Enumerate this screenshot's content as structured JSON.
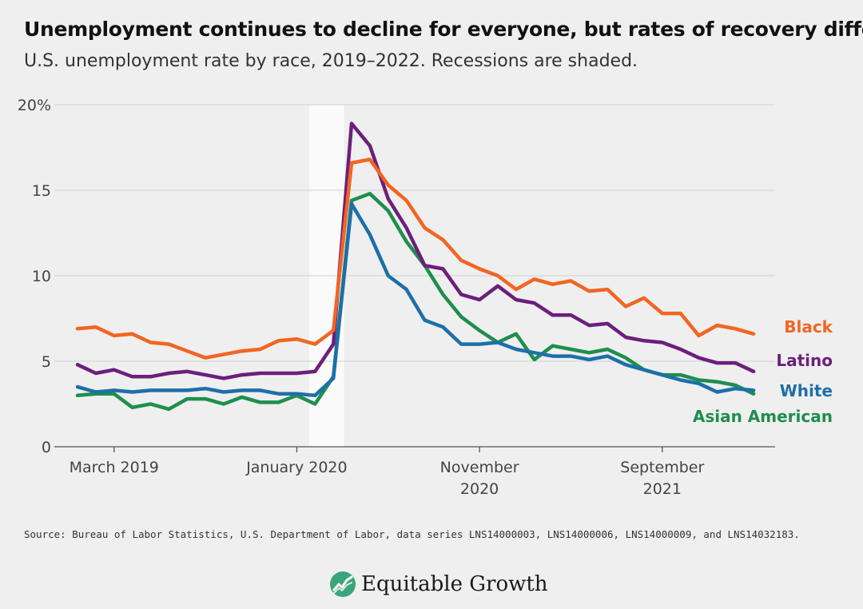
{
  "title": "Unemployment continues to decline for everyone, but rates of recovery differ",
  "subtitle": "U.S. unemployment rate by race, 2019–2022. Recessions are shaded.",
  "source": "Source: Bureau of Labor Statistics, U.S. Department of Labor, data series LNS14000003, LNS14000006, LNS14000009, and LNS14032183.",
  "brand": {
    "name": "Equitable Growth"
  },
  "chart_data": {
    "type": "line",
    "title": "Unemployment continues to decline for everyone, but rates of recovery differ",
    "subtitle": "U.S. unemployment rate by race, 2019–2022. Recessions are shaded.",
    "x_start": "2019-01",
    "x_end": "2022-03",
    "x_ticks": [
      {
        "at": "2019-03",
        "label": [
          "March 2019"
        ]
      },
      {
        "at": "2020-01",
        "label": [
          "January 2020"
        ]
      },
      {
        "at": "2020-11",
        "label": [
          "November",
          "2020"
        ]
      },
      {
        "at": "2021-09",
        "label": [
          "September",
          "2021"
        ]
      }
    ],
    "y_ticks": [
      {
        "value": 0,
        "label": "0"
      },
      {
        "value": 5,
        "label": "5"
      },
      {
        "value": 10,
        "label": "10"
      },
      {
        "value": 15,
        "label": "15"
      },
      {
        "value": 20,
        "label": "20%"
      }
    ],
    "ylim": [
      0,
      20
    ],
    "grid": true,
    "recession": {
      "start": "2020-02",
      "end": "2020-04"
    },
    "series": [
      {
        "name": "Black",
        "color": "#f26522",
        "values": [
          6.9,
          7.0,
          6.5,
          6.6,
          6.1,
          6.0,
          5.6,
          5.2,
          5.4,
          5.6,
          5.7,
          6.2,
          6.3,
          6.0,
          6.8,
          16.6,
          16.8,
          15.3,
          14.4,
          12.8,
          12.1,
          10.9,
          10.4,
          10.0,
          9.2,
          9.8,
          9.5,
          9.7,
          9.1,
          9.2,
          8.2,
          8.7,
          7.8,
          7.8,
          6.5,
          7.1,
          6.9,
          6.6
        ]
      },
      {
        "name": "Latino",
        "color": "#6b1f7b",
        "values": [
          4.8,
          4.3,
          4.5,
          4.1,
          4.1,
          4.3,
          4.4,
          4.2,
          4.0,
          4.2,
          4.3,
          4.3,
          4.3,
          4.4,
          6.0,
          18.9,
          17.6,
          14.5,
          12.8,
          10.6,
          10.4,
          8.9,
          8.6,
          9.4,
          8.6,
          8.4,
          7.7,
          7.7,
          7.1,
          7.2,
          6.4,
          6.2,
          6.1,
          5.7,
          5.2,
          4.9,
          4.9,
          4.4
        ]
      },
      {
        "name": "White",
        "color": "#1d6fa9",
        "values": [
          3.5,
          3.2,
          3.3,
          3.2,
          3.3,
          3.3,
          3.3,
          3.4,
          3.2,
          3.3,
          3.3,
          3.1,
          3.1,
          3.0,
          4.0,
          14.2,
          12.4,
          10.0,
          9.2,
          7.4,
          7.0,
          6.0,
          6.0,
          6.1,
          5.7,
          5.5,
          5.3,
          5.3,
          5.1,
          5.3,
          4.8,
          4.5,
          4.2,
          3.9,
          3.7,
          3.2,
          3.4,
          3.3
        ]
      },
      {
        "name": "Asian American",
        "color": "#1f8e4d",
        "values": [
          3.0,
          3.1,
          3.1,
          2.3,
          2.5,
          2.2,
          2.8,
          2.8,
          2.5,
          2.9,
          2.6,
          2.6,
          3.0,
          2.5,
          4.1,
          14.4,
          14.8,
          13.8,
          12.0,
          10.6,
          8.9,
          7.6,
          6.8,
          6.1,
          6.6,
          5.1,
          5.9,
          5.7,
          5.5,
          5.7,
          5.2,
          4.5,
          4.2,
          4.2,
          3.9,
          3.8,
          3.6,
          3.1
        ]
      }
    ]
  }
}
